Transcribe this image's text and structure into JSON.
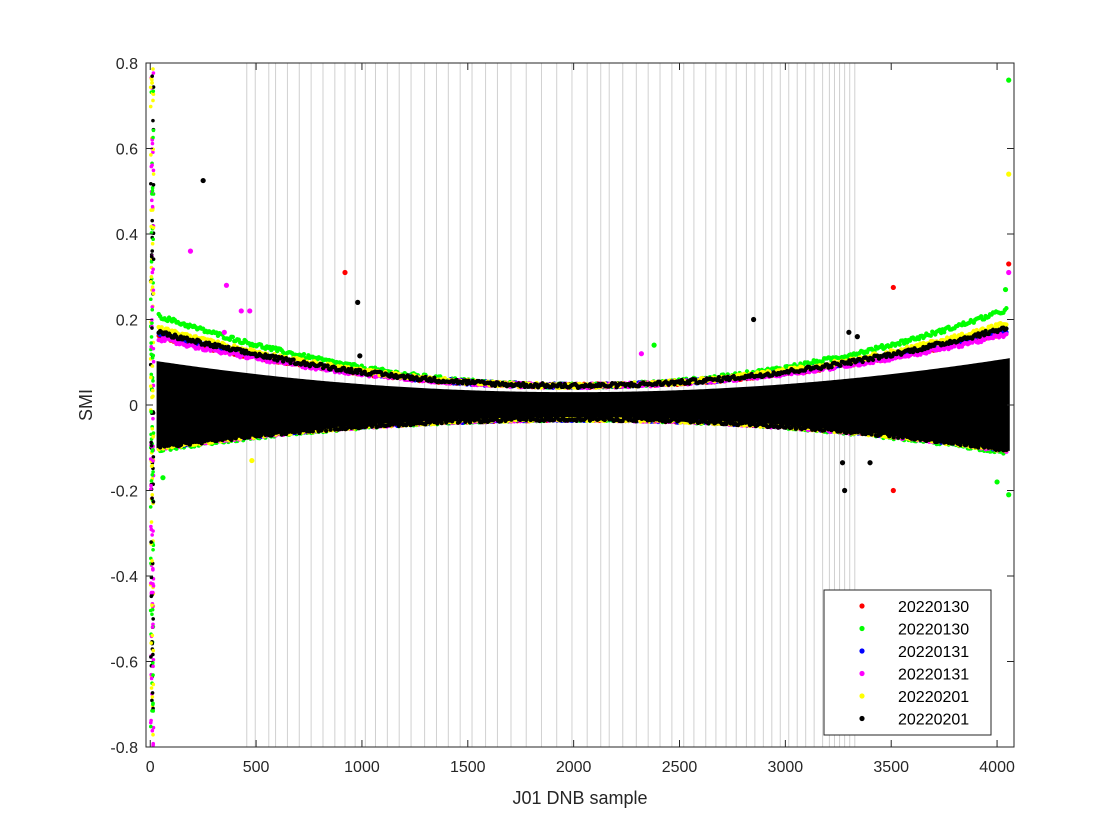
{
  "chart_data": {
    "type": "scatter",
    "xlabel": "J01 DNB sample",
    "ylabel": "SMI",
    "xlim": [
      -20,
      4080
    ],
    "ylim": [
      -0.8,
      0.8
    ],
    "xticks": [
      0,
      500,
      1000,
      1500,
      2000,
      2500,
      3000,
      3500,
      4000
    ],
    "yticks": [
      -0.8,
      -0.6,
      -0.4,
      -0.2,
      0,
      0.2,
      0.4,
      0.6,
      0.8
    ],
    "legend_position": "bottom-right",
    "vertical_reference_lines_x": [
      456,
      496,
      560,
      592,
      648,
      704,
      760,
      816,
      872,
      920,
      968,
      1016,
      1064,
      1120,
      1176,
      1232,
      1296,
      1352,
      1408,
      1464,
      1520,
      1584,
      1640,
      1704,
      1776,
      1848,
      1920,
      1992,
      2064,
      2128,
      2168,
      2232,
      2296,
      2352,
      2408,
      2464,
      2520,
      2568,
      2624,
      2672,
      2720,
      2768,
      2816,
      2856,
      2896,
      2936,
      2976,
      3016,
      3056,
      3096,
      3136,
      3176,
      3208,
      3232,
      3256,
      3280,
      3304,
      3328
    ],
    "series": [
      {
        "name": "20220130",
        "color": "#ff0000",
        "max_envelope": 0.165,
        "min_envelope": -0.105
      },
      {
        "name": "20220130",
        "color": "#00ff00",
        "max_envelope": 0.215,
        "min_envelope": -0.115
      },
      {
        "name": "20220131",
        "color": "#0000ff",
        "max_envelope": 0.17,
        "min_envelope": -0.108
      },
      {
        "name": "20220131",
        "color": "#ff00ff",
        "max_envelope": 0.16,
        "min_envelope": -0.11
      },
      {
        "name": "20220201",
        "color": "#ffff00",
        "max_envelope": 0.185,
        "min_envelope": -0.11
      },
      {
        "name": "20220201",
        "color": "#000000",
        "max_envelope": 0.175,
        "min_envelope": -0.108
      }
    ],
    "outliers": [
      {
        "series": 0,
        "x": 920,
        "y": 0.31
      },
      {
        "series": 0,
        "x": 3510,
        "y": 0.275
      },
      {
        "series": 0,
        "x": 3510,
        "y": -0.2
      },
      {
        "series": 0,
        "x": 4055,
        "y": 0.33
      },
      {
        "series": 1,
        "x": 60,
        "y": -0.17
      },
      {
        "series": 1,
        "x": 2380,
        "y": 0.14
      },
      {
        "series": 1,
        "x": 4055,
        "y": 0.76
      },
      {
        "series": 1,
        "x": 4055,
        "y": -0.21
      },
      {
        "series": 1,
        "x": 4040,
        "y": 0.27
      },
      {
        "series": 1,
        "x": 4000,
        "y": -0.18
      },
      {
        "series": 3,
        "x": 190,
        "y": 0.36
      },
      {
        "series": 3,
        "x": 360,
        "y": 0.28
      },
      {
        "series": 3,
        "x": 430,
        "y": 0.22
      },
      {
        "series": 3,
        "x": 470,
        "y": 0.22
      },
      {
        "series": 3,
        "x": 350,
        "y": 0.17
      },
      {
        "series": 3,
        "x": 2320,
        "y": 0.12
      },
      {
        "series": 3,
        "x": 4055,
        "y": 0.31
      },
      {
        "series": 4,
        "x": 4055,
        "y": 0.54
      },
      {
        "series": 4,
        "x": 480,
        "y": -0.13
      },
      {
        "series": 5,
        "x": 250,
        "y": 0.525
      },
      {
        "series": 5,
        "x": 980,
        "y": 0.24
      },
      {
        "series": 5,
        "x": 990,
        "y": 0.115
      },
      {
        "series": 5,
        "x": 2850,
        "y": 0.2
      },
      {
        "series": 5,
        "x": 3280,
        "y": -0.2
      },
      {
        "series": 5,
        "x": 3270,
        "y": -0.135
      },
      {
        "series": 5,
        "x": 3400,
        "y": -0.135
      },
      {
        "series": 5,
        "x": 3300,
        "y": 0.17
      },
      {
        "series": 5,
        "x": 3340,
        "y": 0.16
      }
    ]
  }
}
